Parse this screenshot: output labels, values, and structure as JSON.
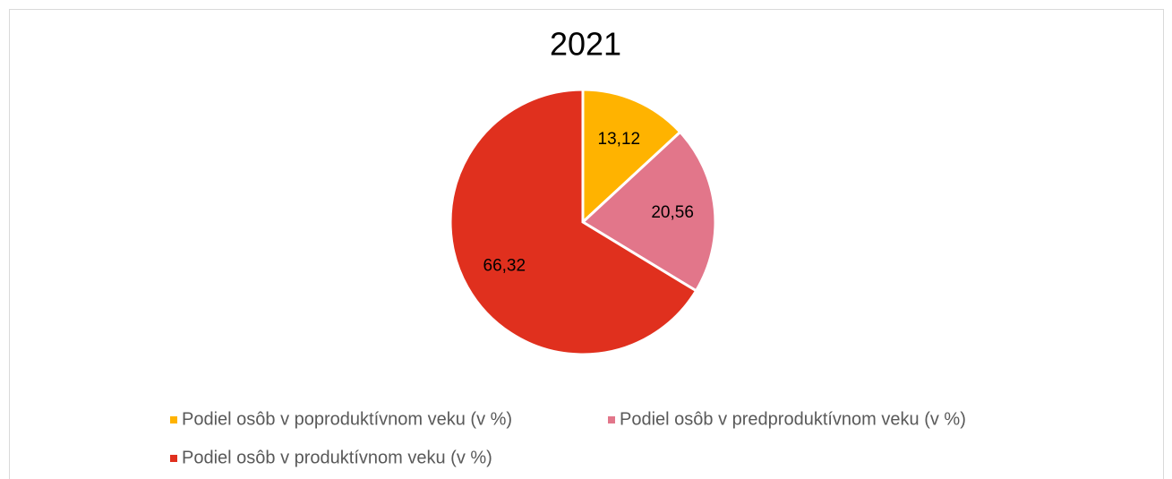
{
  "chart_data": {
    "type": "pie",
    "title": "2021",
    "categories": [
      "Podiel osôb v poproduktívnom veku (v %)",
      "Podiel osôb v predproduktívnom veku (v %)",
      "Podiel osôb v produktívnom veku (v %)"
    ],
    "values": [
      13.12,
      20.56,
      66.32
    ],
    "value_labels": [
      "13,12",
      "20,56",
      "66,32"
    ],
    "colors": [
      "#FFB300",
      "#E2768A",
      "#E0301E"
    ],
    "legend": "bottom"
  }
}
